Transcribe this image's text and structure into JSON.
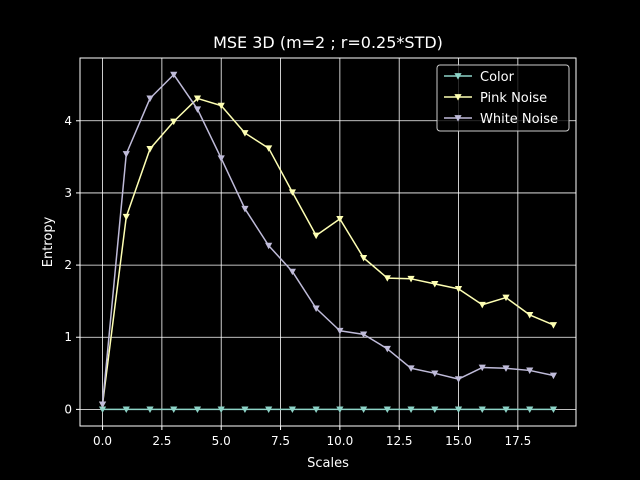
{
  "chart_data": {
    "type": "line",
    "title": "MSE 3D (m=2 ; r=0.25*STD)",
    "xlabel": "Scales",
    "ylabel": "Entropy",
    "xlim": [
      -0.95,
      19.95
    ],
    "ylim": [
      -0.23,
      4.87
    ],
    "x_ticks": [
      0.0,
      2.5,
      5.0,
      7.5,
      10.0,
      12.5,
      15.0,
      17.5
    ],
    "x_tick_labels": [
      "0.0",
      "2.5",
      "5.0",
      "7.5",
      "10.0",
      "12.5",
      "15.0",
      "17.5"
    ],
    "y_ticks": [
      0,
      1,
      2,
      3,
      4
    ],
    "y_tick_labels": [
      "0",
      "1",
      "2",
      "3",
      "4"
    ],
    "grid": true,
    "legend_position": "top-right",
    "marker": "triangle-down",
    "x": [
      0,
      1,
      2,
      3,
      4,
      5,
      6,
      7,
      8,
      9,
      10,
      11,
      12,
      13,
      14,
      15,
      16,
      17,
      18,
      19
    ],
    "series": [
      {
        "name": "Color",
        "color": "#8dd3c7",
        "values": [
          0.0,
          0.0,
          0.0,
          0.0,
          0.0,
          0.0,
          0.0,
          0.0,
          0.0,
          0.0,
          0.0,
          0.0,
          0.0,
          0.0,
          0.0,
          0.0,
          0.0,
          0.0,
          0.0,
          0.0
        ]
      },
      {
        "name": "Pink Noise",
        "color": "#feffb3",
        "values": [
          0.07,
          2.67,
          3.61,
          3.99,
          4.31,
          4.21,
          3.83,
          3.62,
          3.01,
          2.41,
          2.64,
          2.1,
          1.82,
          1.81,
          1.74,
          1.67,
          1.45,
          1.55,
          1.31,
          1.17
        ]
      },
      {
        "name": "White Noise",
        "color": "#bfbbd9",
        "values": [
          0.07,
          3.54,
          4.31,
          4.64,
          4.16,
          3.48,
          2.78,
          2.27,
          1.91,
          1.4,
          1.09,
          1.04,
          0.84,
          0.57,
          0.5,
          0.42,
          0.58,
          0.57,
          0.54,
          0.47
        ]
      }
    ]
  }
}
